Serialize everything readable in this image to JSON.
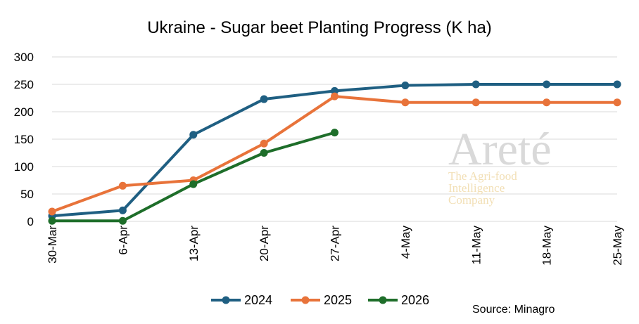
{
  "chart_data": {
    "type": "line",
    "title": "Ukraine - Sugar beet Planting Progress (K ha)",
    "categories": [
      "30-Mar",
      "6-Apr",
      "13-Apr",
      "20-Apr",
      "27-Apr",
      "4-May",
      "11-May",
      "18-May",
      "25-May"
    ],
    "ylim": [
      0,
      300
    ],
    "yticks": [
      "0",
      "50",
      "100",
      "150",
      "200",
      "250",
      "300"
    ],
    "grid": "horizontal",
    "legend_position": "bottom",
    "series": [
      {
        "name": "2024",
        "color": "#1f5f82",
        "values": [
          10,
          20,
          158,
          223,
          238,
          248,
          250,
          250,
          250
        ]
      },
      {
        "name": "2025",
        "color": "#e8733a",
        "values": [
          18,
          65,
          75,
          142,
          228,
          217,
          217,
          217,
          217
        ]
      },
      {
        "name": "2026",
        "color": "#1e6e2a",
        "values": [
          1,
          1,
          68,
          125,
          162,
          null,
          null,
          null,
          null
        ]
      }
    ],
    "source": "Source: Minagro"
  },
  "watermark": {
    "brand": "Areté",
    "tagline": [
      "The Agri-food",
      "Intelligence",
      "Company"
    ]
  }
}
